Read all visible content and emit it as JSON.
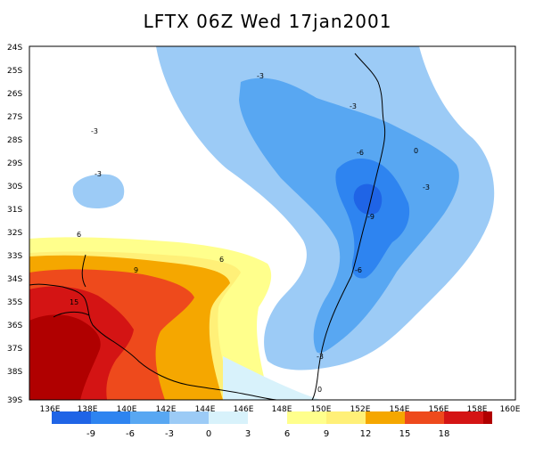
{
  "title": "LFTX 06Z Wed 17jan2001",
  "colors": {
    "c_m12": "#1f64e6",
    "c_m9": "#2e84f0",
    "c_m6": "#58a7f2",
    "c_m3": "#9ccbf6",
    "c_0": "#d8f2fb",
    "c_white": "#ffffff",
    "c_3": "#ffff8c",
    "c_6": "#fff078",
    "c_9": "#f5a700",
    "c_12": "#ee4a1c",
    "c_15": "#d41414",
    "c_18": "#b00000",
    "coast": "#000000"
  },
  "map": {
    "y_ticks": [
      "24S",
      "25S",
      "26S",
      "27S",
      "28S",
      "29S",
      "30S",
      "31S",
      "32S",
      "33S",
      "34S",
      "35S",
      "36S",
      "37S",
      "38S",
      "39S"
    ],
    "x_ticks": [
      "136E",
      "138E",
      "140E",
      "142E",
      "144E",
      "146E",
      "148E",
      "150E",
      "152E",
      "154E",
      "156E",
      "158E",
      "160E"
    ],
    "contour_labels": [
      "-3",
      "-3",
      "-3",
      "-3",
      "-3",
      "-6",
      "-9",
      "-6",
      "-3",
      "0",
      "0",
      "6",
      "9",
      "6",
      "15"
    ]
  },
  "colorbar": {
    "labels": [
      "-9",
      "-6",
      "-3",
      "0",
      "3",
      "6",
      "9",
      "12",
      "15",
      "18"
    ]
  }
}
